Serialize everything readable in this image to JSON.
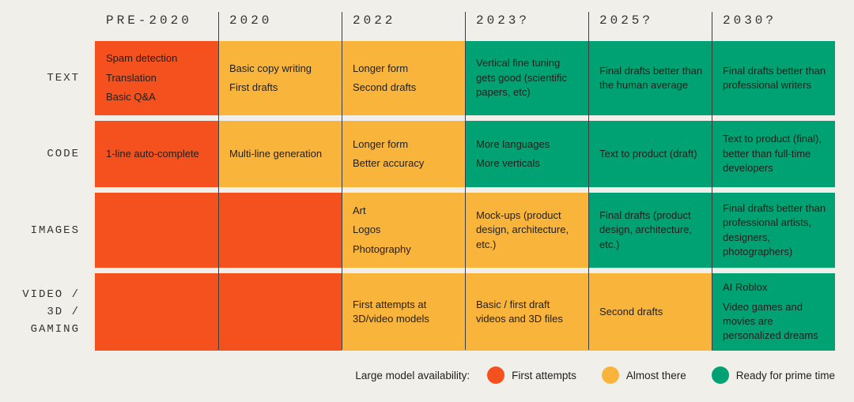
{
  "palette": {
    "bg": "#F0EFEA",
    "first": "#F4511E",
    "almost": "#F9B43C",
    "ready": "#00A172",
    "line": "#3E3E3E",
    "ink": "#201F1B",
    "heading": "#333330"
  },
  "columns": [
    "PRE-2020",
    "2020",
    "2022",
    "2023?",
    "2025?",
    "2030?"
  ],
  "rows": [
    {
      "label": "TEXT",
      "cells": [
        {
          "level": "first",
          "items": [
            "Spam detection",
            "Translation",
            "Basic Q&A"
          ]
        },
        {
          "level": "almost",
          "items": [
            "Basic copy writing",
            "First drafts"
          ]
        },
        {
          "level": "almost",
          "items": [
            "Longer form",
            "Second drafts"
          ]
        },
        {
          "level": "ready",
          "items": [
            "Vertical fine tuning gets good (scientific papers, etc)"
          ]
        },
        {
          "level": "ready",
          "items": [
            "Final drafts better than the human average"
          ]
        },
        {
          "level": "ready",
          "items": [
            "Final drafts better than professional writers"
          ]
        }
      ]
    },
    {
      "label": "CODE",
      "cells": [
        {
          "level": "first",
          "items": [
            "1-line auto-complete"
          ]
        },
        {
          "level": "almost",
          "items": [
            "Multi-line generation"
          ]
        },
        {
          "level": "almost",
          "items": [
            "Longer form",
            "Better accuracy"
          ]
        },
        {
          "level": "ready",
          "items": [
            "More languages",
            "More verticals"
          ]
        },
        {
          "level": "ready",
          "items": [
            "Text to product (draft)"
          ]
        },
        {
          "level": "ready",
          "items": [
            "Text to product (final), better than full-time developers"
          ]
        }
      ]
    },
    {
      "label": "IMAGES",
      "cells": [
        {
          "level": "first",
          "items": []
        },
        {
          "level": "first",
          "items": []
        },
        {
          "level": "almost",
          "items": [
            "Art",
            "Logos",
            "Photography"
          ]
        },
        {
          "level": "almost",
          "items": [
            "Mock-ups (product design, architecture, etc.)"
          ]
        },
        {
          "level": "ready",
          "items": [
            "Final drafts (product design, architecture, etc.)"
          ]
        },
        {
          "level": "ready",
          "items": [
            "Final drafts better than professional artists, designers, photographers)"
          ]
        }
      ]
    },
    {
      "label_lines": [
        "VIDEO /",
        "3D /",
        "GAMING"
      ],
      "cells": [
        {
          "level": "first",
          "items": []
        },
        {
          "level": "first",
          "items": []
        },
        {
          "level": "almost",
          "items": [
            "First attempts at 3D/video models"
          ]
        },
        {
          "level": "almost",
          "items": [
            "Basic / first draft videos and 3D files"
          ]
        },
        {
          "level": "almost",
          "items": [
            "Second drafts"
          ]
        },
        {
          "level": "ready",
          "items": [
            "AI Roblox",
            "Video games and movies are personalized dreams"
          ]
        }
      ]
    }
  ],
  "legend": {
    "label": "Large model availability:",
    "items": [
      {
        "level": "first",
        "label": "First attempts"
      },
      {
        "level": "almost",
        "label": "Almost there"
      },
      {
        "level": "ready",
        "label": "Ready for prime time"
      }
    ]
  }
}
